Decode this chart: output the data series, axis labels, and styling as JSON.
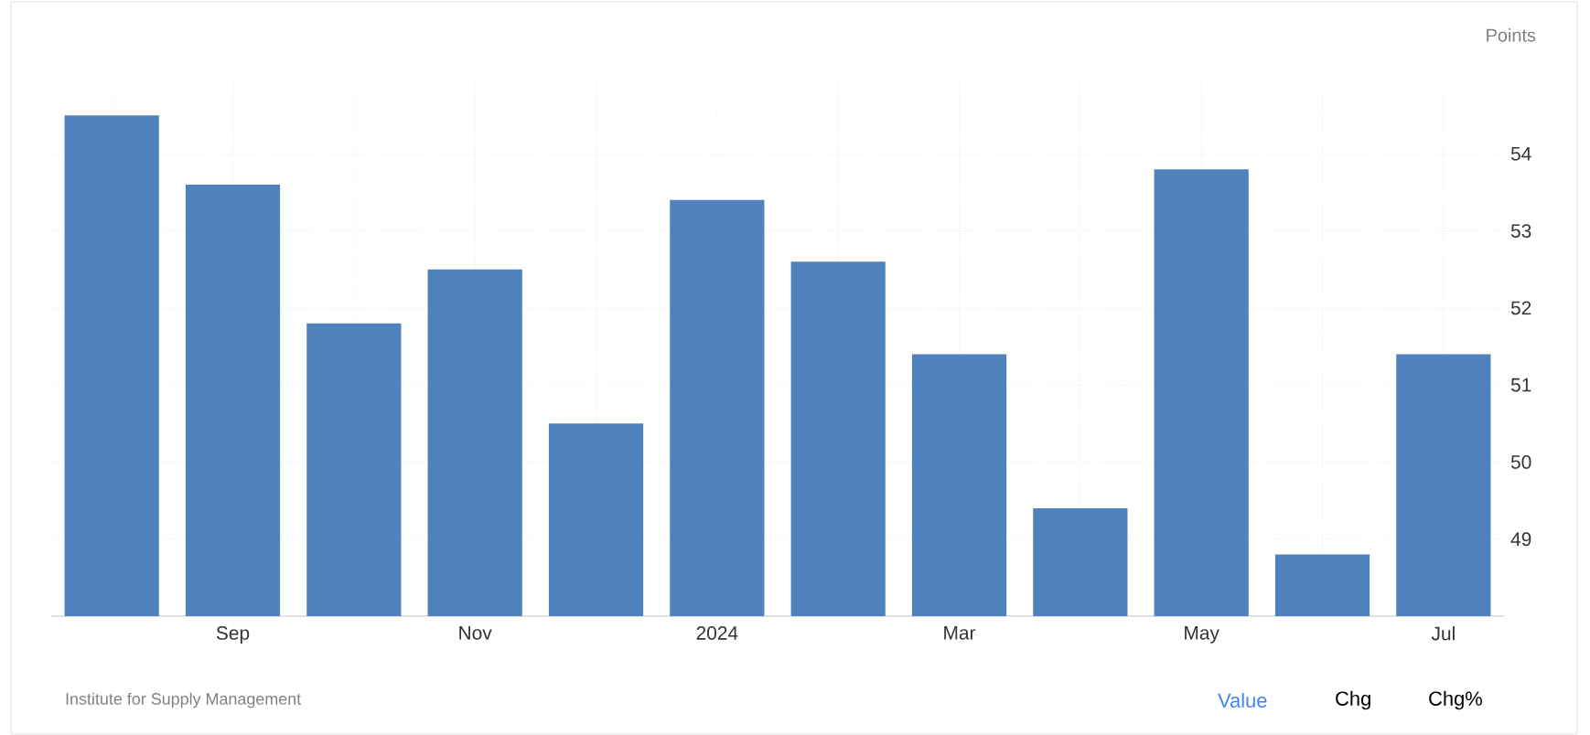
{
  "chart_data": {
    "type": "bar",
    "ylabel": "Points",
    "categories": [
      null,
      "Sep",
      null,
      "Nov",
      null,
      "2024",
      null,
      "Mar",
      null,
      "May",
      null,
      "Jul"
    ],
    "values": [
      54.5,
      53.6,
      51.8,
      52.5,
      50.5,
      53.4,
      52.6,
      51.4,
      49.4,
      53.8,
      48.8,
      51.4
    ],
    "color": "#4f81bd",
    "ylim": [
      48,
      55
    ],
    "yticks": [
      49,
      50,
      51,
      52,
      53,
      54
    ],
    "grid": true,
    "annotations": [
      "Institute for Supply Management",
      "Value",
      "Chg",
      "Chg%"
    ]
  }
}
